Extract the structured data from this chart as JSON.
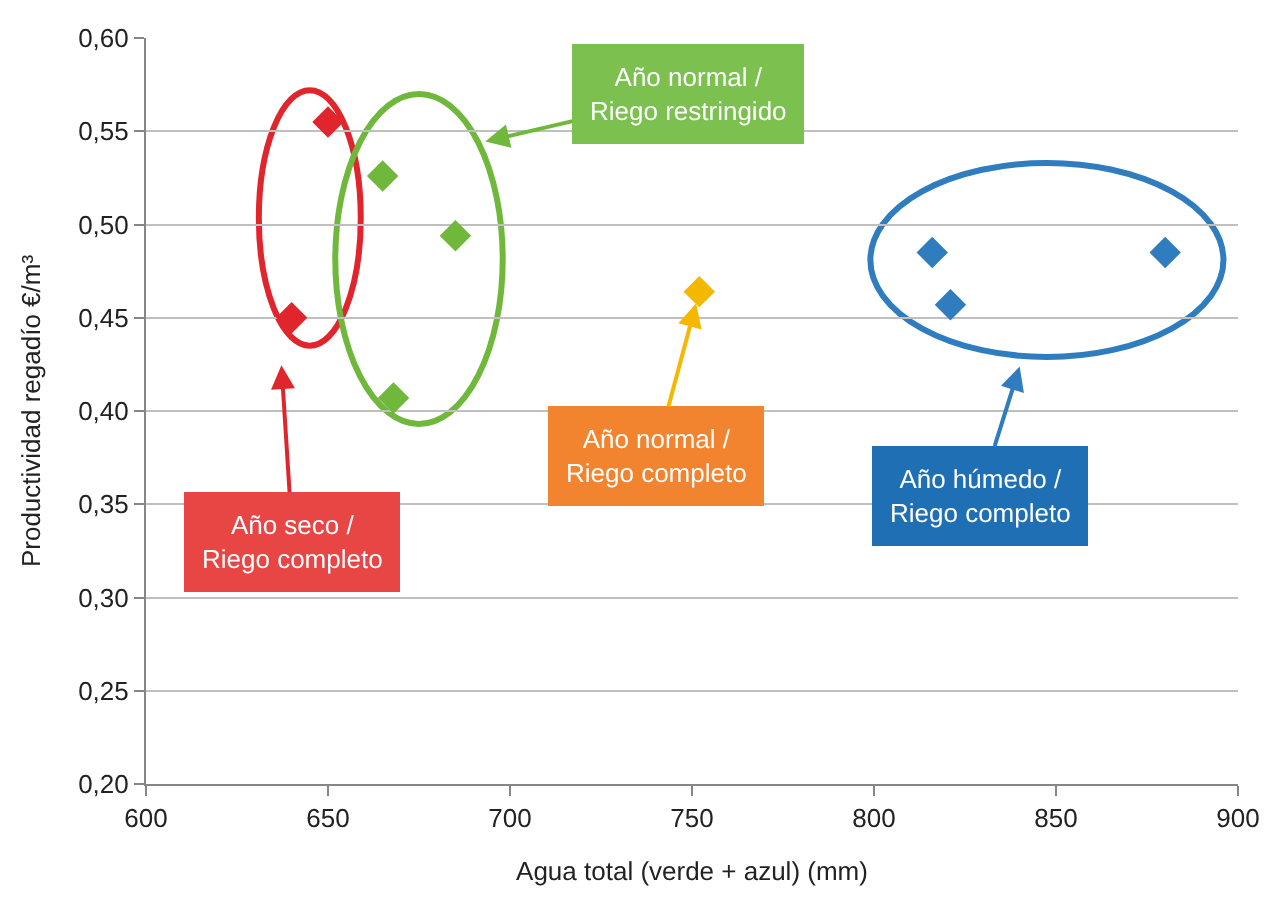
{
  "chart_data": {
    "type": "scatter",
    "xlabel": "Agua total (verde + azul) (mm)",
    "ylabel": "Productividad regadío €/m³",
    "xlim": [
      600,
      900
    ],
    "xticks": [
      600,
      650,
      700,
      750,
      800,
      850,
      900
    ],
    "ylim": [
      0.2,
      0.6
    ],
    "yticks": [
      {
        "value": 0.2,
        "label": "0,20"
      },
      {
        "value": 0.25,
        "label": "0,25"
      },
      {
        "value": 0.3,
        "label": "0,30"
      },
      {
        "value": 0.35,
        "label": "0,35"
      },
      {
        "value": 0.4,
        "label": "0,40"
      },
      {
        "value": 0.45,
        "label": "0,45"
      },
      {
        "value": 0.5,
        "label": "0,50"
      },
      {
        "value": 0.55,
        "label": "0,55"
      },
      {
        "value": 0.6,
        "label": "0,60"
      }
    ],
    "grid": "y",
    "marker": "diamond",
    "series": [
      {
        "color": "#e0262c",
        "x": [
          640,
          650
        ],
        "values": [
          0.45,
          0.555
        ]
      },
      {
        "color": "#6fb83c",
        "x": [
          665,
          685,
          668
        ],
        "values": [
          0.526,
          0.494,
          0.407
        ]
      },
      {
        "color": "#f5b800",
        "x": [
          752
        ],
        "values": [
          0.464
        ]
      },
      {
        "color": "#2f7dbf",
        "x": [
          816,
          821,
          880
        ],
        "values": [
          0.485,
          0.457,
          0.485
        ]
      }
    ],
    "annotations": [
      "Año seco /\nRiego completo",
      "Año normal /\nRiego restringido",
      {
        "text": "Año normal /\nRiego completo",
        "x": 752,
        "y": 0.464
      },
      "Año húmedo /\nRiego completo"
    ]
  }
}
